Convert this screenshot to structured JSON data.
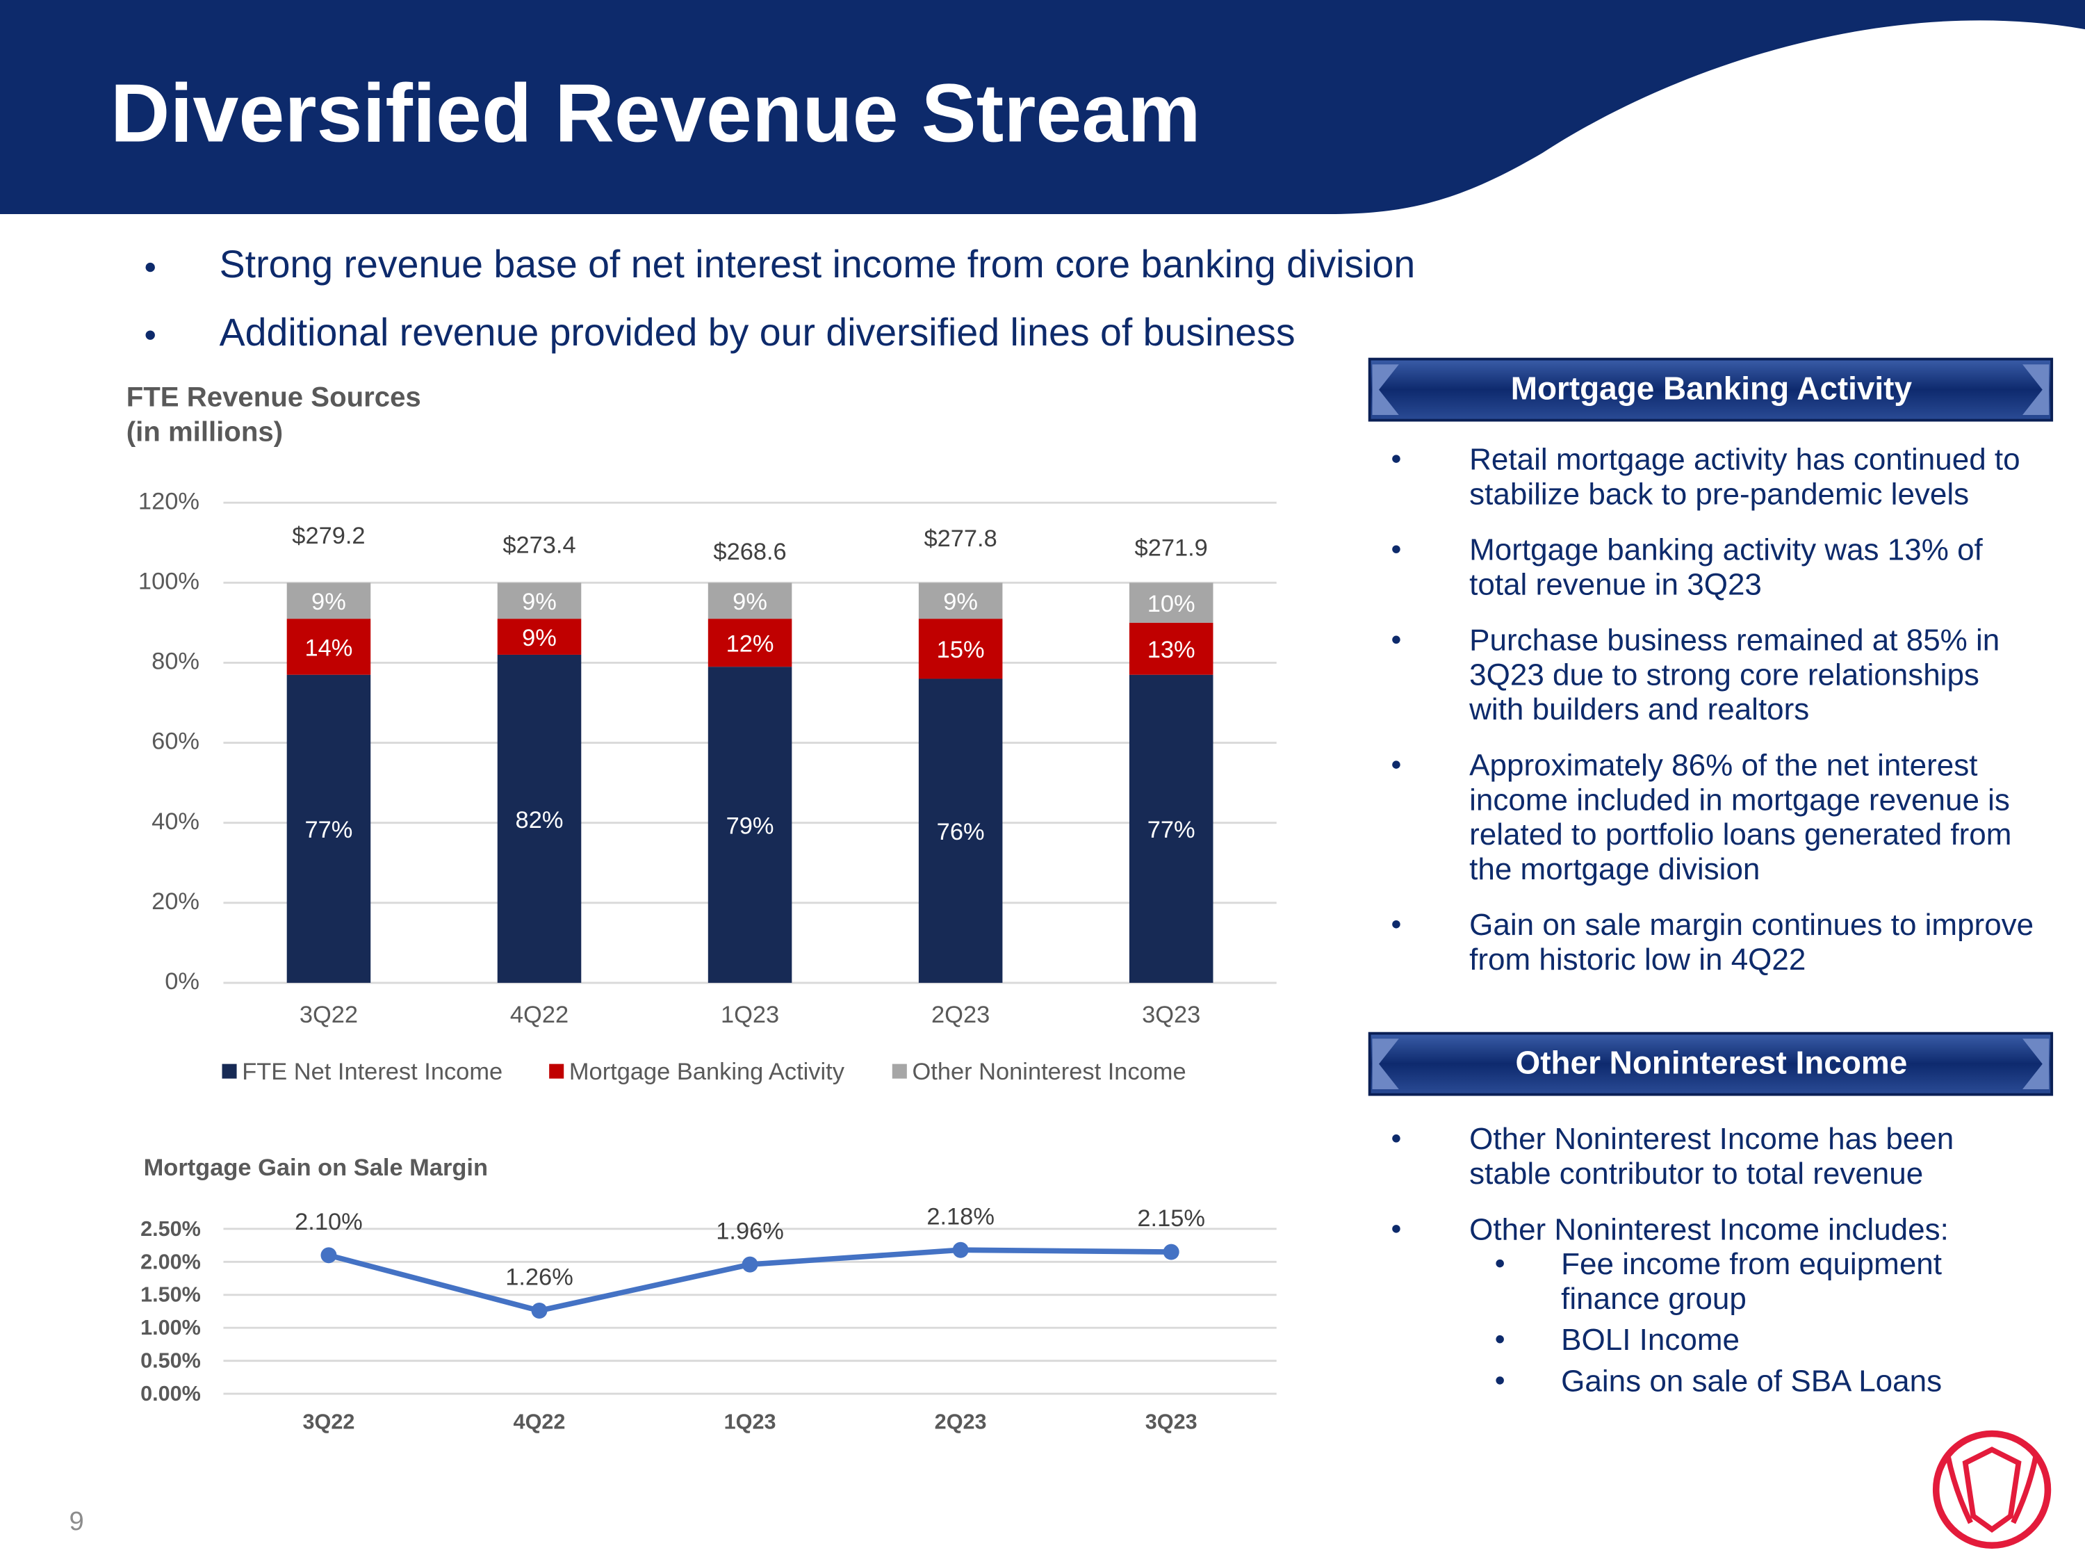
{
  "title": "Diversified Revenue Stream",
  "bullets": [
    "Strong revenue base of net interest income from core banking division",
    "Additional revenue provided by our diversified lines of business"
  ],
  "page_number": "9",
  "mortgage_panel": {
    "heading": "Mortgage Banking Activity",
    "bullets": [
      [
        "Retail mortgage activity has continued to",
        "stabilize back to pre-pandemic levels"
      ],
      [
        "Mortgage banking activity was 13% of",
        "total revenue in 3Q23"
      ],
      [
        "Purchase business remained at 85% in",
        "3Q23 due to strong core relationships",
        "with builders and realtors"
      ],
      [
        "Approximately 86% of the net interest",
        "income included in mortgage revenue is",
        "related to portfolio loans generated from",
        "the mortgage division"
      ],
      [
        "Gain on sale margin continues to improve",
        "from historic low in 4Q22"
      ]
    ]
  },
  "other_panel": {
    "heading": "Other Noninterest Income",
    "bullets": [
      [
        "Other Noninterest Income has been",
        "stable contributor to total revenue"
      ],
      [
        "Other Noninterest Income includes:"
      ]
    ],
    "sub_bullets": [
      [
        "Fee income from equipment",
        "finance group"
      ],
      [
        "BOLI Income"
      ],
      [
        "Gains on sale of SBA Loans"
      ]
    ]
  },
  "chart_data": [
    {
      "type": "stacked_bar",
      "title": "FTE Revenue Sources",
      "subtitle": "(in millions)",
      "categories": [
        "3Q22",
        "4Q22",
        "1Q23",
        "2Q23",
        "3Q23"
      ],
      "series": [
        {
          "name": "FTE Net Interest Income",
          "color": "#172a55",
          "values": [
            77,
            82,
            79,
            76,
            77
          ],
          "value_labels": [
            "77%",
            "82%",
            "79%",
            "76%",
            "77%"
          ]
        },
        {
          "name": "Mortgage Banking Activity",
          "color": "#c00000",
          "values": [
            14,
            9,
            12,
            15,
            13
          ],
          "value_labels": [
            "14%",
            "9%",
            "12%",
            "15%",
            "13%"
          ]
        },
        {
          "name": "Other Noninterest Income",
          "color": "#a6a6a6",
          "values": [
            9,
            9,
            9,
            9,
            10
          ],
          "value_labels": [
            "9%",
            "9%",
            "9%",
            "9%",
            "10%"
          ]
        }
      ],
      "annotations": [
        "$279.2",
        "$273.4",
        "$268.6",
        "$277.8",
        "$271.9"
      ],
      "ylim": [
        0,
        120
      ],
      "yticks": [
        {
          "value": 0,
          "label": "0%"
        },
        {
          "value": 20,
          "label": "20%"
        },
        {
          "value": 40,
          "label": "40%"
        },
        {
          "value": 60,
          "label": "60%"
        },
        {
          "value": 80,
          "label": "80%"
        },
        {
          "value": 100,
          "label": "100%"
        },
        {
          "value": 120,
          "label": "120%"
        }
      ],
      "grid": true,
      "legend": "bottom"
    },
    {
      "type": "line",
      "title": "Mortgage Gain on Sale Margin",
      "categories": [
        "3Q22",
        "4Q22",
        "1Q23",
        "2Q23",
        "3Q23"
      ],
      "values": [
        2.1,
        1.26,
        1.96,
        2.18,
        2.15
      ],
      "value_labels": [
        "2.10%",
        "1.26%",
        "1.96%",
        "2.18%",
        "2.15%"
      ],
      "color": "#4472c4",
      "ylim": [
        0,
        2.5
      ],
      "yticks": [
        {
          "value": 0,
          "label": "0.00%"
        },
        {
          "value": 0.5,
          "label": "0.50%"
        },
        {
          "value": 1,
          "label": "1.00%"
        },
        {
          "value": 1.5,
          "label": "1.50%"
        },
        {
          "value": 2,
          "label": "2.00%"
        },
        {
          "value": 2.5,
          "label": "2.50%"
        }
      ],
      "grid": true
    }
  ]
}
